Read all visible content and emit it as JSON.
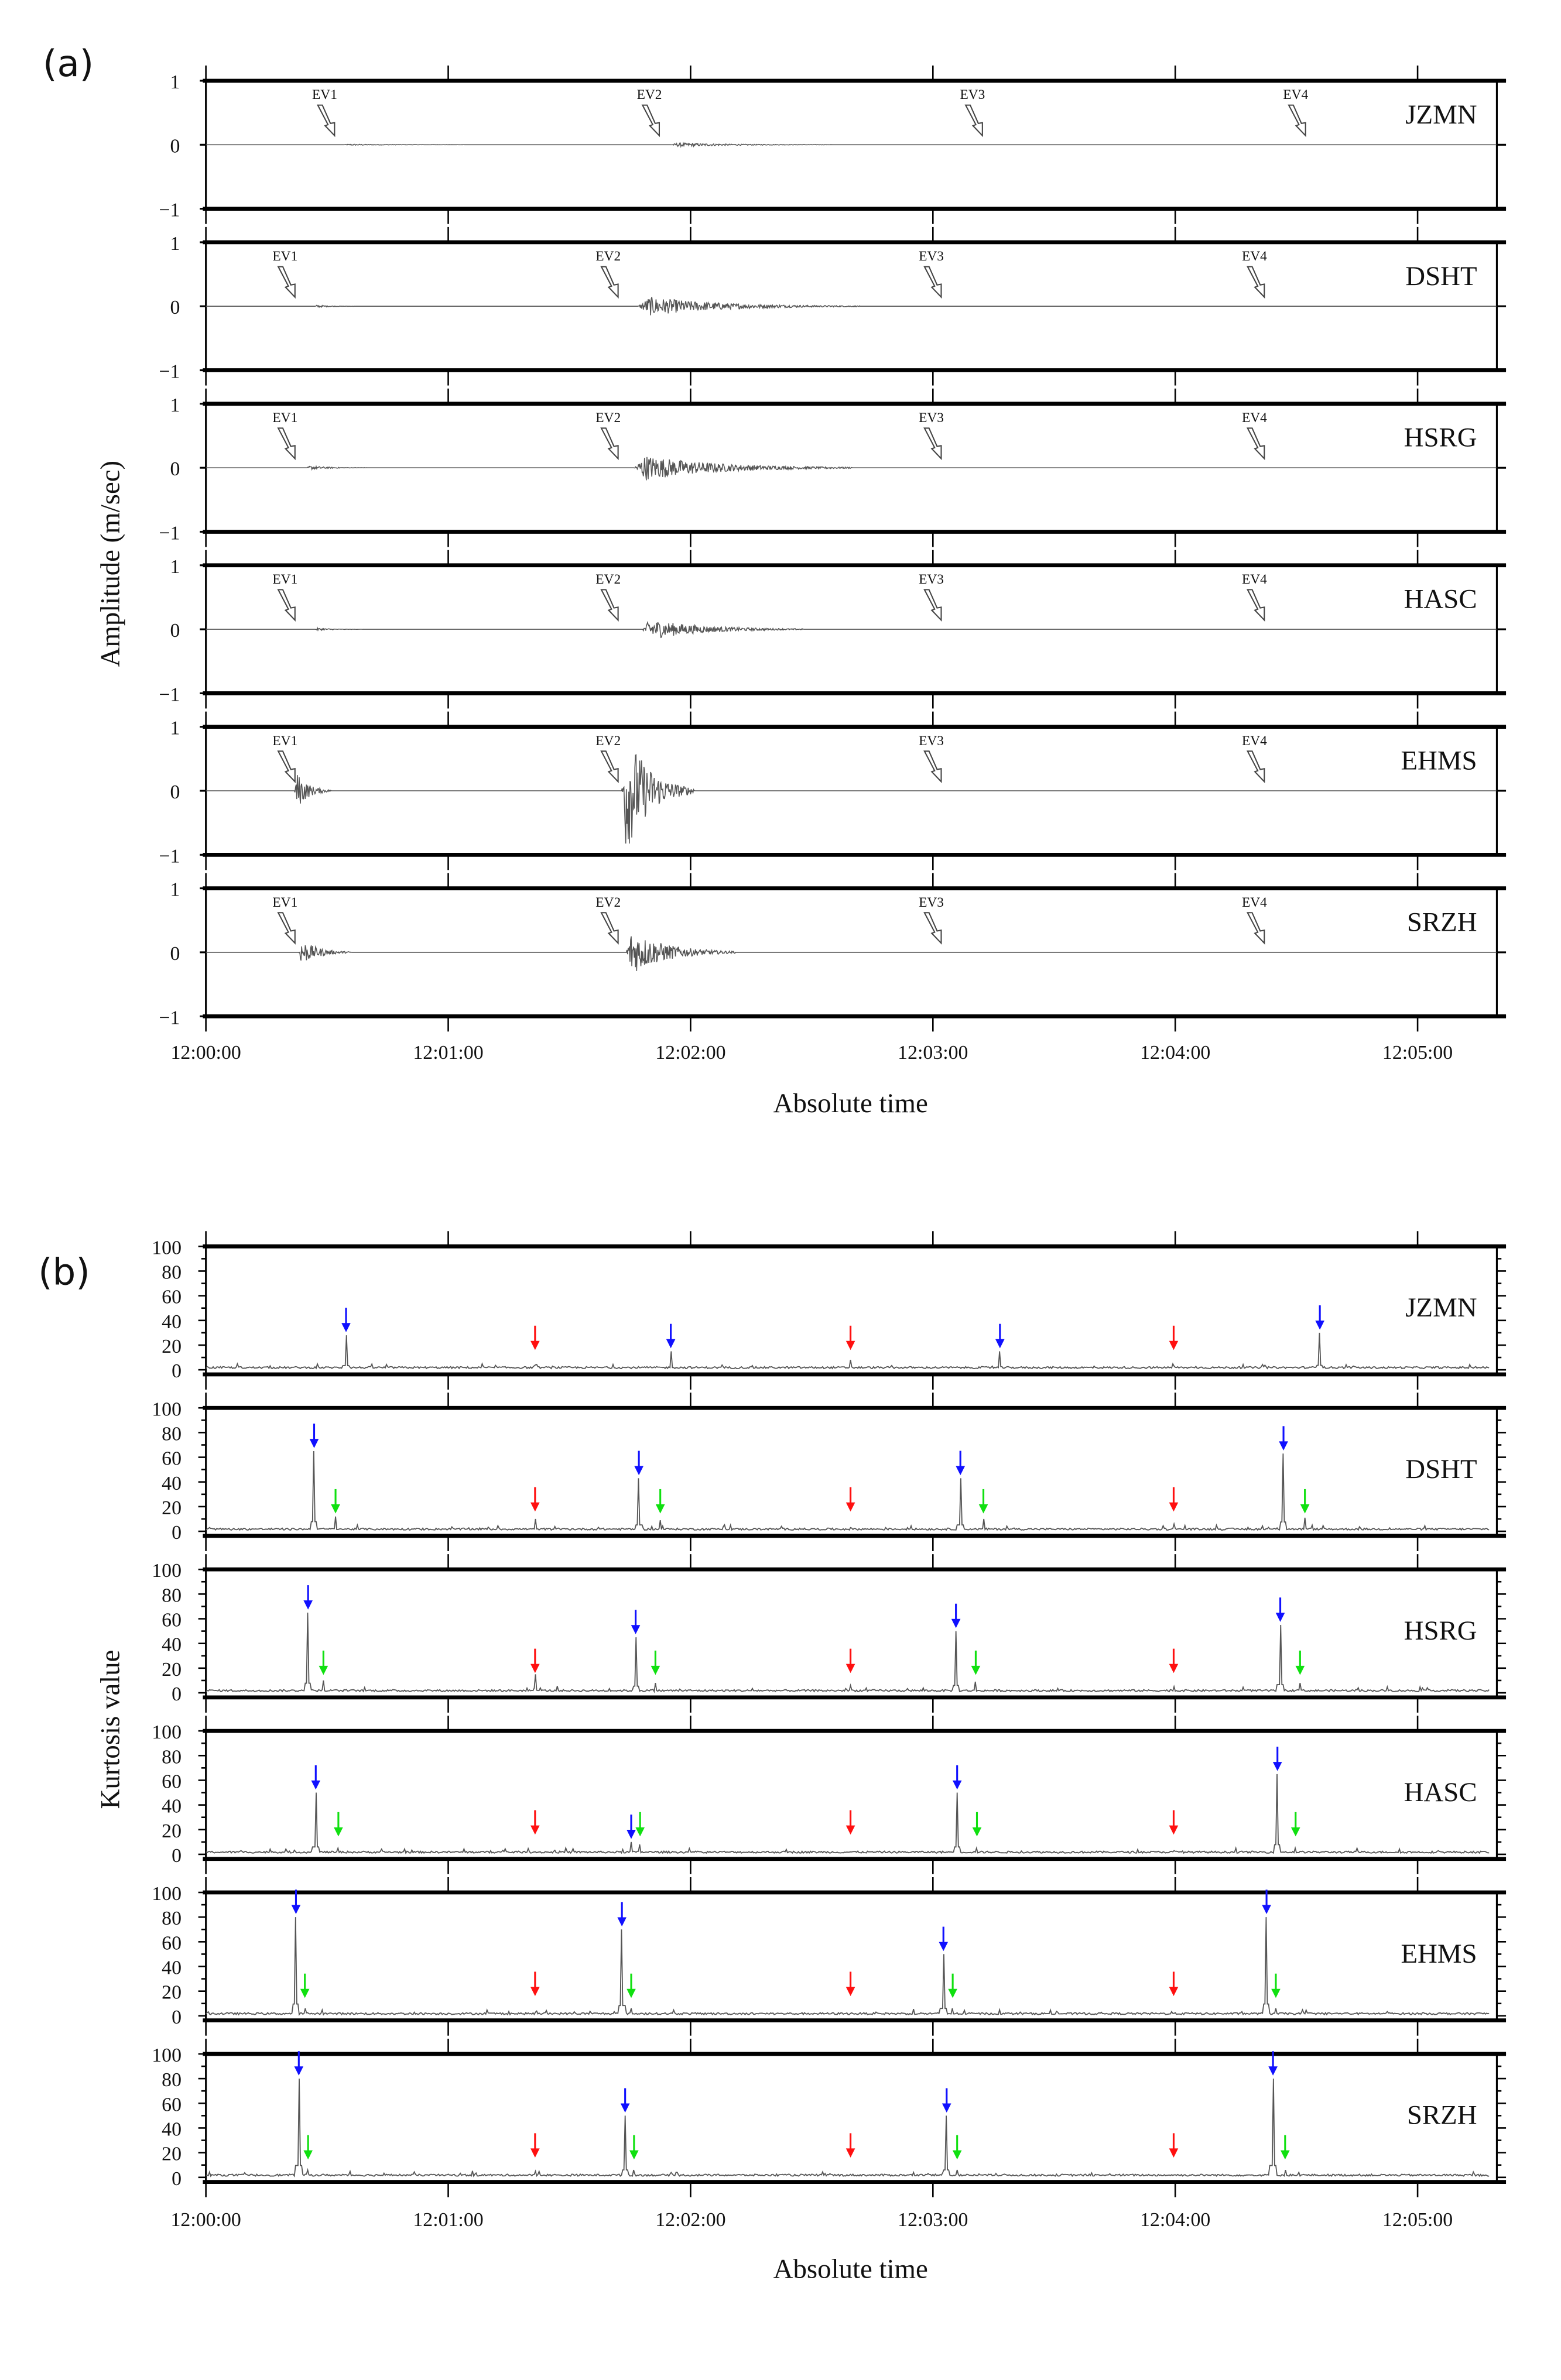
{
  "colors": {
    "trace": "#555555",
    "frame": "#000000",
    "blue_arrow": "#1010ff",
    "red_arrow": "#ff1010",
    "green_arrow": "#10e010"
  },
  "time_ticks": [
    "12:00:00",
    "12:01:00",
    "12:02:00",
    "12:03:00",
    "12:04:00",
    "12:05:00"
  ],
  "chart_data": [
    {
      "type": "line",
      "panel_label": "(a)",
      "xlabel": "Absolute time",
      "ylabel": "Amplitude (m/sec)",
      "xlim_seconds_after_12:00:00": [
        0,
        320
      ],
      "ylim": [
        -1,
        1
      ],
      "yticks": [
        "1",
        "0",
        "−1"
      ],
      "event_labels": [
        "EV1",
        "EV2",
        "EV3",
        "EV4"
      ],
      "stations": [
        {
          "name": "JZMN",
          "ev_times_s": [
            29.4,
            109.8,
            189.8,
            269.8
          ],
          "signals": [
            {
              "onset_s": 34,
              "peak": 0.01,
              "dur_s": 30
            },
            {
              "onset_s": 115,
              "peak": 0.03,
              "dur_s": 40
            }
          ]
        },
        {
          "name": "DSHT",
          "ev_times_s": [
            19.6,
            99.6,
            179.6,
            259.6
          ],
          "signals": [
            {
              "onset_s": 27,
              "peak": 0.02,
              "dur_s": 10
            },
            {
              "onset_s": 107,
              "peak": 0.15,
              "dur_s": 55
            }
          ]
        },
        {
          "name": "HSRG",
          "ev_times_s": [
            19.6,
            99.6,
            179.6,
            259.6
          ],
          "signals": [
            {
              "onset_s": 25,
              "peak": 0.03,
              "dur_s": 15
            },
            {
              "onset_s": 106,
              "peak": 0.2,
              "dur_s": 54
            }
          ]
        },
        {
          "name": "HASC",
          "ev_times_s": [
            19.6,
            99.6,
            179.6,
            259.6
          ],
          "signals": [
            {
              "onset_s": 27,
              "peak": 0.02,
              "dur_s": 12
            },
            {
              "onset_s": 108,
              "peak": 0.16,
              "dur_s": 40
            }
          ]
        },
        {
          "name": "EHMS",
          "ev_times_s": [
            19.6,
            99.6,
            179.6,
            259.6
          ],
          "signals": [
            {
              "onset_s": 22,
              "peak": 0.3,
              "dur_s": 9
            },
            {
              "onset_s": 103,
              "peak": 1.0,
              "dur_s": 18
            }
          ]
        },
        {
          "name": "SRZH",
          "ev_times_s": [
            19.6,
            99.6,
            179.6,
            259.6
          ],
          "signals": [
            {
              "onset_s": 23,
              "peak": 0.2,
              "dur_s": 13
            },
            {
              "onset_s": 104,
              "peak": 0.35,
              "dur_s": 27
            }
          ]
        }
      ]
    },
    {
      "type": "line",
      "panel_label": "(b)",
      "xlabel": "Absolute time",
      "ylabel": "Kurtosis value",
      "xlim_seconds_after_12:00:00": [
        0,
        320
      ],
      "ylim": [
        0,
        100
      ],
      "yticks": [
        "100",
        "80",
        "60",
        "40",
        "20",
        "0"
      ],
      "stations": [
        {
          "name": "JZMN",
          "blue_picks": [
            [
              34.7,
              28
            ],
            [
              115.1,
              15
            ],
            [
              196.6,
              15
            ],
            [
              275.8,
              30
            ]
          ],
          "green_picks": [],
          "red_picks": [
            [
              81.5,
              4
            ],
            [
              159.6,
              8
            ],
            [
              239.6,
              3
            ]
          ]
        },
        {
          "name": "DSHT",
          "blue_picks": [
            [
              26.8,
              65
            ],
            [
              107.2,
              43
            ],
            [
              186.8,
              43
            ],
            [
              266.8,
              63
            ]
          ],
          "green_picks": [
            [
              32.1,
              12
            ],
            [
              112.5,
              9
            ],
            [
              192.5,
              10
            ],
            [
              272.1,
              11
            ]
          ],
          "red_picks": [
            [
              81.5,
              10
            ],
            [
              159.6,
              3
            ],
            [
              239.6,
              6
            ]
          ]
        },
        {
          "name": "HSRG",
          "blue_picks": [
            [
              25.3,
              65
            ],
            [
              106.4,
              45
            ],
            [
              185.7,
              50
            ],
            [
              266.0,
              55
            ]
          ],
          "green_picks": [
            [
              29.1,
              10
            ],
            [
              111.3,
              8
            ],
            [
              190.6,
              9
            ],
            [
              270.9,
              8
            ]
          ],
          "red_picks": [
            [
              81.5,
              15
            ],
            [
              159.6,
              6
            ],
            [
              239.6,
              5
            ]
          ]
        },
        {
          "name": "HASC",
          "blue_picks": [
            [
              27.2,
              50
            ],
            [
              105.3,
              10
            ],
            [
              186.0,
              50
            ],
            [
              265.3,
              65
            ]
          ],
          "green_picks": [
            [
              32.8,
              5
            ],
            [
              107.5,
              8
            ],
            [
              190.9,
              5
            ],
            [
              269.8,
              5
            ]
          ],
          "red_picks": [
            [
              81.5,
              2
            ],
            [
              159.6,
              2
            ],
            [
              239.6,
              3
            ]
          ]
        },
        {
          "name": "EHMS",
          "blue_picks": [
            [
              22.3,
              80
            ],
            [
              103.0,
              70
            ],
            [
              182.6,
              50
            ],
            [
              262.6,
              80
            ]
          ],
          "green_picks": [
            [
              24.5,
              6
            ],
            [
              105.3,
              6
            ],
            [
              184.9,
              6
            ],
            [
              264.9,
              6
            ]
          ],
          "red_picks": [
            [
              81.5,
              3
            ],
            [
              159.6,
              2
            ],
            [
              239.6,
              2
            ]
          ]
        },
        {
          "name": "SRZH",
          "blue_picks": [
            [
              23.0,
              80
            ],
            [
              103.8,
              50
            ],
            [
              183.4,
              50
            ],
            [
              264.2,
              80
            ]
          ],
          "green_picks": [
            [
              25.3,
              6
            ],
            [
              106.0,
              6
            ],
            [
              186.0,
              6
            ],
            [
              267.2,
              6
            ]
          ],
          "red_picks": [
            [
              81.5,
              5
            ],
            [
              159.6,
              2
            ],
            [
              239.6,
              2
            ]
          ]
        }
      ]
    }
  ]
}
